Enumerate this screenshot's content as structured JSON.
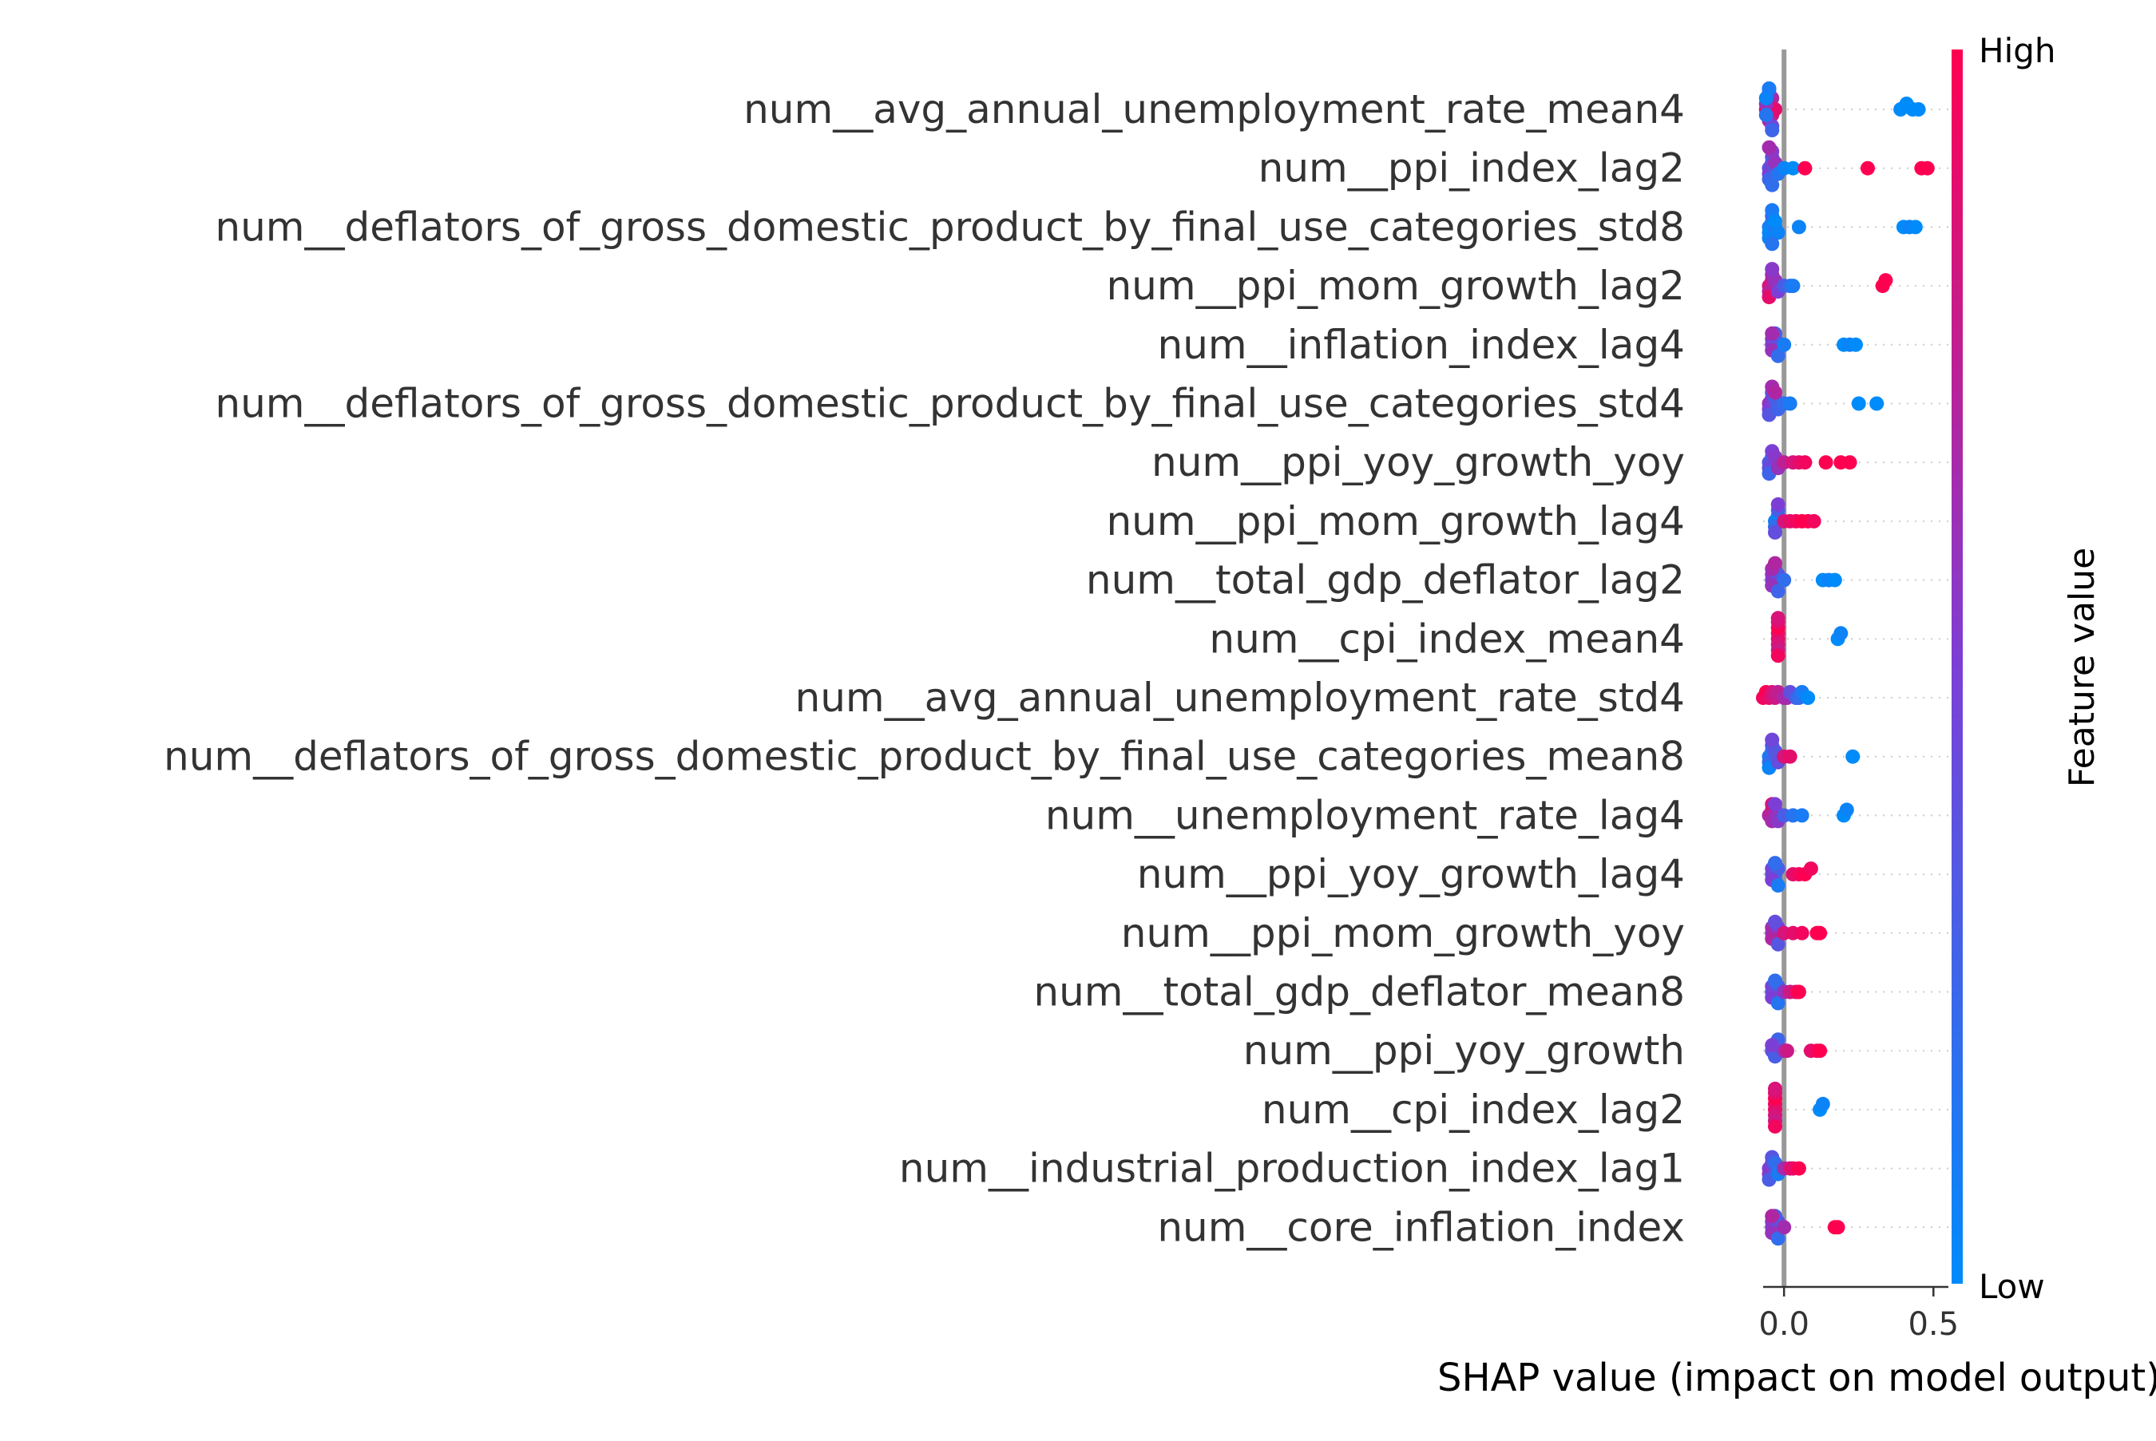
{
  "chart_data": {
    "type": "scatter",
    "subtype": "shap-beeswarm",
    "title": "",
    "xlabel": "SHAP value (impact on model output)",
    "ylabel": "",
    "xlim": [
      -0.07,
      0.55
    ],
    "xticks": [
      {
        "value": 0.0,
        "label": "0.0"
      },
      {
        "value": 0.5,
        "label": "0.5"
      }
    ],
    "zero_line": 0.0,
    "colorbar": {
      "title": "Feature value",
      "high_label": "High",
      "low_label": "Low",
      "low_color": "#008bfb",
      "mid_color": "#7c3fd6",
      "high_color": "#ff0051"
    },
    "grid": "dotted row lines",
    "features": [
      {
        "name": "num__avg_annual_unemployment_rate_mean4",
        "points": [
          [
            -0.06,
            0.95
          ],
          [
            -0.05,
            0.9
          ],
          [
            -0.05,
            0.85
          ],
          [
            -0.04,
            0.8
          ],
          [
            -0.04,
            0.7
          ],
          [
            -0.05,
            0.75
          ],
          [
            -0.03,
            0.9
          ],
          [
            -0.06,
            0.6
          ],
          [
            -0.05,
            0.55
          ],
          [
            -0.04,
            0.45
          ],
          [
            -0.05,
            0.35
          ],
          [
            -0.06,
            0.15
          ],
          [
            -0.04,
            0.25
          ],
          [
            -0.05,
            0.1
          ],
          [
            -0.06,
            0.05
          ],
          [
            0.39,
            0.0
          ],
          [
            0.41,
            0.0
          ],
          [
            0.43,
            0.0
          ],
          [
            0.45,
            0.0
          ]
        ]
      },
      {
        "name": "num__ppi_index_lag2",
        "points": [
          [
            -0.05,
            0.4
          ],
          [
            -0.04,
            0.45
          ],
          [
            -0.05,
            0.5
          ],
          [
            -0.03,
            0.35
          ],
          [
            -0.04,
            0.3
          ],
          [
            -0.05,
            0.25
          ],
          [
            -0.04,
            0.55
          ],
          [
            -0.03,
            0.6
          ],
          [
            -0.02,
            0.15
          ],
          [
            -0.04,
            0.2
          ],
          [
            -0.05,
            0.65
          ],
          [
            0.0,
            0.05
          ],
          [
            0.03,
            0.0
          ],
          [
            0.07,
            1.0
          ],
          [
            0.28,
            1.0
          ],
          [
            0.46,
            1.0
          ],
          [
            0.48,
            1.0
          ]
        ]
      },
      {
        "name": "num__deflators_of_gross_domestic_product_by_final_use_categories_std8",
        "points": [
          [
            -0.05,
            0.1
          ],
          [
            -0.04,
            0.05
          ],
          [
            -0.05,
            0.0
          ],
          [
            -0.03,
            0.15
          ],
          [
            -0.04,
            0.2
          ],
          [
            -0.05,
            0.05
          ],
          [
            -0.04,
            0.1
          ],
          [
            -0.03,
            0.0
          ],
          [
            -0.02,
            0.05
          ],
          [
            -0.04,
            0.15
          ],
          [
            0.05,
            0.05
          ],
          [
            0.4,
            0.0
          ],
          [
            0.42,
            0.05
          ],
          [
            0.44,
            0.0
          ]
        ]
      },
      {
        "name": "num__ppi_mom_growth_lag2",
        "points": [
          [
            -0.05,
            0.85
          ],
          [
            -0.04,
            0.8
          ],
          [
            -0.05,
            0.75
          ],
          [
            -0.03,
            0.7
          ],
          [
            -0.04,
            0.65
          ],
          [
            -0.05,
            0.9
          ],
          [
            -0.03,
            0.6
          ],
          [
            -0.02,
            0.5
          ],
          [
            -0.04,
            0.55
          ],
          [
            0.0,
            0.3
          ],
          [
            0.02,
            0.2
          ],
          [
            0.03,
            0.1
          ],
          [
            0.33,
            1.0
          ],
          [
            0.34,
            1.0
          ]
        ]
      },
      {
        "name": "num__inflation_index_lag4",
        "points": [
          [
            -0.04,
            0.5
          ],
          [
            -0.03,
            0.45
          ],
          [
            -0.04,
            0.55
          ],
          [
            -0.03,
            0.4
          ],
          [
            -0.02,
            0.35
          ],
          [
            -0.04,
            0.6
          ],
          [
            -0.03,
            0.3
          ],
          [
            -0.02,
            0.2
          ],
          [
            -0.04,
            0.65
          ],
          [
            0.0,
            0.1
          ],
          [
            0.2,
            0.0
          ],
          [
            0.22,
            0.05
          ],
          [
            0.24,
            0.0
          ]
        ]
      },
      {
        "name": "num__deflators_of_gross_domestic_product_by_final_use_categories_std4",
        "points": [
          [
            -0.05,
            0.6
          ],
          [
            -0.04,
            0.55
          ],
          [
            -0.05,
            0.5
          ],
          [
            -0.03,
            0.45
          ],
          [
            -0.04,
            0.4
          ],
          [
            -0.05,
            0.35
          ],
          [
            -0.03,
            0.3
          ],
          [
            -0.02,
            0.25
          ],
          [
            -0.04,
            0.65
          ],
          [
            -0.03,
            0.7
          ],
          [
            0.0,
            0.2
          ],
          [
            0.02,
            0.1
          ],
          [
            0.25,
            0.0
          ],
          [
            0.31,
            0.0
          ]
        ]
      },
      {
        "name": "num__ppi_yoy_growth_yoy",
        "points": [
          [
            -0.05,
            0.35
          ],
          [
            -0.04,
            0.3
          ],
          [
            -0.05,
            0.4
          ],
          [
            -0.03,
            0.45
          ],
          [
            -0.04,
            0.5
          ],
          [
            -0.05,
            0.25
          ],
          [
            -0.03,
            0.55
          ],
          [
            -0.02,
            0.6
          ],
          [
            0.0,
            0.75
          ],
          [
            0.03,
            0.85
          ],
          [
            0.05,
            0.9
          ],
          [
            0.07,
            0.95
          ],
          [
            0.14,
            1.0
          ],
          [
            0.19,
            1.0
          ],
          [
            0.22,
            1.0
          ]
        ]
      },
      {
        "name": "num__ppi_mom_growth_lag4",
        "points": [
          [
            -0.03,
            0.1
          ],
          [
            -0.02,
            0.05
          ],
          [
            -0.03,
            0.2
          ],
          [
            -0.02,
            0.3
          ],
          [
            -0.03,
            0.4
          ],
          [
            -0.02,
            0.5
          ],
          [
            0.0,
            0.85
          ],
          [
            0.02,
            0.9
          ],
          [
            0.04,
            0.95
          ],
          [
            0.06,
            1.0
          ],
          [
            0.08,
            1.0
          ],
          [
            0.1,
            0.95
          ]
        ]
      },
      {
        "name": "num__total_gdp_deflator_lag2",
        "points": [
          [
            -0.04,
            0.5
          ],
          [
            -0.03,
            0.45
          ],
          [
            -0.04,
            0.55
          ],
          [
            -0.02,
            0.4
          ],
          [
            -0.03,
            0.35
          ],
          [
            -0.04,
            0.6
          ],
          [
            -0.03,
            0.3
          ],
          [
            -0.02,
            0.25
          ],
          [
            -0.04,
            0.65
          ],
          [
            -0.03,
            0.7
          ],
          [
            0.0,
            0.2
          ],
          [
            0.13,
            0.0
          ],
          [
            0.15,
            0.05
          ],
          [
            0.17,
            0.0
          ]
        ]
      },
      {
        "name": "num__cpi_index_mean4",
        "points": [
          [
            -0.02,
            0.95
          ],
          [
            -0.02,
            0.9
          ],
          [
            -0.02,
            0.85
          ],
          [
            -0.02,
            1.0
          ],
          [
            -0.02,
            0.8
          ],
          [
            -0.02,
            0.9
          ],
          [
            -0.02,
            0.95
          ],
          [
            -0.02,
            0.85
          ],
          [
            0.18,
            0.0
          ],
          [
            0.19,
            0.05
          ]
        ]
      },
      {
        "name": "num__avg_annual_unemployment_rate_std4",
        "points": [
          [
            -0.07,
            0.95
          ],
          [
            -0.06,
            1.0
          ],
          [
            -0.05,
            0.9
          ],
          [
            -0.04,
            0.85
          ],
          [
            -0.03,
            0.8
          ],
          [
            -0.02,
            0.75
          ],
          [
            0.0,
            0.7
          ],
          [
            0.01,
            0.65
          ],
          [
            0.02,
            0.4
          ],
          [
            0.04,
            0.3
          ],
          [
            0.05,
            0.2
          ],
          [
            0.06,
            0.1
          ],
          [
            0.08,
            0.0
          ]
        ]
      },
      {
        "name": "num__deflators_of_gross_domestic_product_by_final_use_categories_mean8",
        "points": [
          [
            -0.05,
            0.1
          ],
          [
            -0.04,
            0.15
          ],
          [
            -0.05,
            0.2
          ],
          [
            -0.03,
            0.25
          ],
          [
            -0.04,
            0.3
          ],
          [
            -0.05,
            0.05
          ],
          [
            -0.03,
            0.35
          ],
          [
            -0.02,
            0.4
          ],
          [
            -0.04,
            0.45
          ],
          [
            0.0,
            0.85
          ],
          [
            0.02,
            0.9
          ],
          [
            0.23,
            0.0
          ]
        ]
      },
      {
        "name": "num__unemployment_rate_lag4",
        "points": [
          [
            -0.05,
            0.7
          ],
          [
            -0.04,
            0.75
          ],
          [
            -0.03,
            0.8
          ],
          [
            -0.04,
            0.65
          ],
          [
            -0.03,
            0.6
          ],
          [
            -0.02,
            0.55
          ],
          [
            -0.04,
            0.85
          ],
          [
            -0.03,
            0.5
          ],
          [
            0.0,
            0.3
          ],
          [
            0.03,
            0.15
          ],
          [
            0.06,
            0.1
          ],
          [
            0.2,
            0.0
          ],
          [
            0.21,
            0.05
          ]
        ]
      },
      {
        "name": "num__ppi_yoy_growth_lag4",
        "points": [
          [
            -0.04,
            0.4
          ],
          [
            -0.03,
            0.35
          ],
          [
            -0.04,
            0.45
          ],
          [
            -0.02,
            0.3
          ],
          [
            -0.03,
            0.25
          ],
          [
            -0.04,
            0.5
          ],
          [
            -0.03,
            0.2
          ],
          [
            -0.02,
            0.1
          ],
          [
            0.03,
            0.9
          ],
          [
            0.05,
            0.95
          ],
          [
            0.07,
            1.0
          ],
          [
            0.09,
            0.95
          ]
        ]
      },
      {
        "name": "num__ppi_mom_growth_yoy",
        "points": [
          [
            -0.04,
            0.6
          ],
          [
            -0.03,
            0.55
          ],
          [
            -0.04,
            0.65
          ],
          [
            -0.02,
            0.5
          ],
          [
            -0.03,
            0.45
          ],
          [
            -0.04,
            0.7
          ],
          [
            -0.03,
            0.4
          ],
          [
            -0.02,
            0.35
          ],
          [
            0.0,
            0.85
          ],
          [
            0.03,
            0.9
          ],
          [
            0.06,
            0.95
          ],
          [
            0.11,
            1.0
          ],
          [
            0.12,
            1.0
          ]
        ]
      },
      {
        "name": "num__total_gdp_deflator_mean8",
        "points": [
          [
            -0.04,
            0.4
          ],
          [
            -0.03,
            0.35
          ],
          [
            -0.04,
            0.45
          ],
          [
            -0.02,
            0.3
          ],
          [
            -0.03,
            0.25
          ],
          [
            -0.04,
            0.5
          ],
          [
            -0.03,
            0.2
          ],
          [
            -0.02,
            0.15
          ],
          [
            0.0,
            0.6
          ],
          [
            0.02,
            0.8
          ],
          [
            0.04,
            0.9
          ],
          [
            0.05,
            1.0
          ]
        ]
      },
      {
        "name": "num__ppi_yoy_growth",
        "points": [
          [
            -0.04,
            0.4
          ],
          [
            -0.03,
            0.35
          ],
          [
            -0.02,
            0.45
          ],
          [
            -0.03,
            0.3
          ],
          [
            -0.02,
            0.25
          ],
          [
            -0.04,
            0.5
          ],
          [
            0.0,
            0.6
          ],
          [
            0.01,
            0.8
          ],
          [
            0.09,
            0.9
          ],
          [
            0.11,
            0.95
          ],
          [
            0.12,
            1.0
          ]
        ]
      },
      {
        "name": "num__cpi_index_lag2",
        "points": [
          [
            -0.03,
            0.95
          ],
          [
            -0.03,
            0.9
          ],
          [
            -0.03,
            0.85
          ],
          [
            -0.03,
            1.0
          ],
          [
            -0.03,
            0.8
          ],
          [
            -0.03,
            0.9
          ],
          [
            -0.03,
            0.95
          ],
          [
            -0.03,
            0.85
          ],
          [
            0.12,
            0.0
          ],
          [
            0.13,
            0.05
          ]
        ]
      },
      {
        "name": "num__industrial_production_index_lag1",
        "points": [
          [
            -0.05,
            0.5
          ],
          [
            -0.04,
            0.45
          ],
          [
            -0.05,
            0.55
          ],
          [
            -0.03,
            0.4
          ],
          [
            -0.04,
            0.35
          ],
          [
            -0.05,
            0.3
          ],
          [
            -0.03,
            0.2
          ],
          [
            -0.02,
            0.1
          ],
          [
            0.0,
            0.65
          ],
          [
            0.02,
            0.85
          ],
          [
            0.03,
            0.9
          ],
          [
            0.05,
            1.0
          ]
        ]
      },
      {
        "name": "num__core_inflation_index",
        "points": [
          [
            -0.04,
            0.5
          ],
          [
            -0.03,
            0.45
          ],
          [
            -0.04,
            0.55
          ],
          [
            -0.02,
            0.4
          ],
          [
            -0.03,
            0.35
          ],
          [
            -0.04,
            0.6
          ],
          [
            -0.03,
            0.3
          ],
          [
            -0.02,
            0.2
          ],
          [
            -0.04,
            0.7
          ],
          [
            0.0,
            0.65
          ],
          [
            0.17,
            1.0
          ],
          [
            0.18,
            1.0
          ]
        ]
      }
    ]
  }
}
